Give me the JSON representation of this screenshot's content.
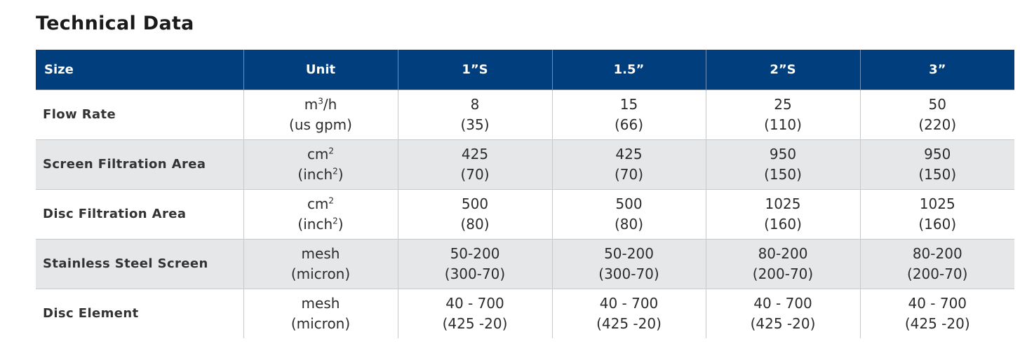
{
  "title": "Technical Data",
  "header": [
    "Size",
    "Unit",
    "1”S",
    "1.5”",
    "2”S",
    "3”"
  ],
  "rows": [
    {
      "label": "Flow Rate",
      "unit": {
        "l1_base": "m",
        "l1_sup": "3",
        "l1_tail": "/h",
        "l2_pre": "(us gpm)",
        "l2_sup": "",
        "l2_tail": ""
      },
      "values": [
        [
          "8",
          "(35)"
        ],
        [
          "15",
          "(66)"
        ],
        [
          "25",
          "(110)"
        ],
        [
          "50",
          "(220)"
        ]
      ]
    },
    {
      "label": "Screen Filtration Area",
      "unit": {
        "l1_base": "cm",
        "l1_sup": "2",
        "l1_tail": "",
        "l2_pre": "(inch",
        "l2_sup": "2",
        "l2_tail": ")"
      },
      "values": [
        [
          "425",
          "(70)"
        ],
        [
          "425",
          "(70)"
        ],
        [
          "950",
          "(150)"
        ],
        [
          "950",
          "(150)"
        ]
      ]
    },
    {
      "label": "Disc Filtration Area",
      "unit": {
        "l1_base": "cm",
        "l1_sup": "2",
        "l1_tail": "",
        "l2_pre": "(inch",
        "l2_sup": "2",
        "l2_tail": ")"
      },
      "values": [
        [
          "500",
          "(80)"
        ],
        [
          "500",
          "(80)"
        ],
        [
          "1025",
          "(160)"
        ],
        [
          "1025",
          "(160)"
        ]
      ]
    },
    {
      "label": "Stainless Steel Screen",
      "unit": {
        "l1_base": "mesh",
        "l1_sup": "",
        "l1_tail": "",
        "l2_pre": "(micron)",
        "l2_sup": "",
        "l2_tail": ""
      },
      "values": [
        [
          "50-200",
          "(300-70)"
        ],
        [
          "50-200",
          "(300-70)"
        ],
        [
          "80-200",
          "(200-70)"
        ],
        [
          "80-200",
          "(200-70)"
        ]
      ]
    },
    {
      "label": "Disc Element",
      "unit": {
        "l1_base": "mesh",
        "l1_sup": "",
        "l1_tail": "",
        "l2_pre": "(micron)",
        "l2_sup": "",
        "l2_tail": ""
      },
      "values": [
        [
          "40 - 700",
          "(425 -20)"
        ],
        [
          "40 - 700",
          "(425 -20)"
        ],
        [
          "40 - 700",
          "(425 -20)"
        ],
        [
          "40 - 700",
          "(425 -20)"
        ]
      ]
    }
  ]
}
